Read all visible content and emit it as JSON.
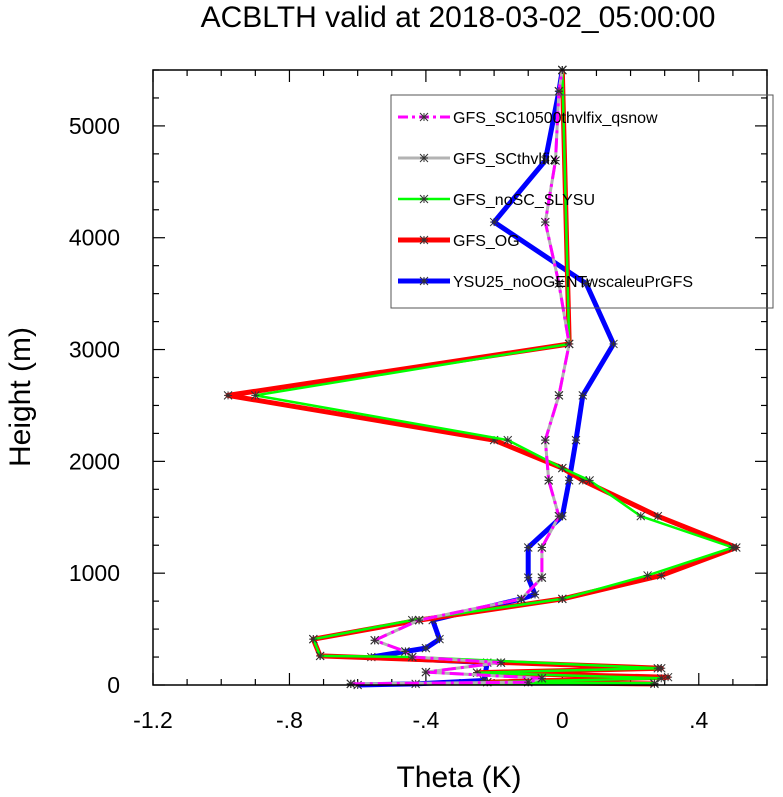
{
  "chart_data": {
    "type": "line",
    "title": "ACBLTH valid at 2018-03-02_05:00:00",
    "xlabel": "Theta (K)",
    "ylabel": "Height (m)",
    "xlim": [
      -1.2,
      0.6
    ],
    "ylim": [
      0,
      5500
    ],
    "x_ticks": [
      -1.2,
      -0.8,
      -0.4,
      0,
      0.4
    ],
    "x_tick_labels": [
      "-1.2",
      "-.8",
      "-.4",
      "0",
      ".4"
    ],
    "y_ticks": [
      0,
      1000,
      2000,
      3000,
      4000,
      5000
    ],
    "y_tick_labels": [
      "0",
      "1000",
      "2000",
      "3000",
      "4000",
      "5000"
    ],
    "grid": false,
    "legend_position": "top-right",
    "series": [
      {
        "name": "GFS_SC10500thvlfix_qsnow",
        "color": "#ff00ff",
        "style": "dashed",
        "points": [
          [
            -0.62,
            10
          ],
          [
            -0.1,
            25
          ],
          [
            -0.06,
            60
          ],
          [
            -0.4,
            115
          ],
          [
            -0.18,
            200
          ],
          [
            -0.44,
            250
          ],
          [
            -0.46,
            300
          ],
          [
            -0.55,
            400
          ],
          [
            -0.42,
            580
          ],
          [
            -0.12,
            770
          ],
          [
            -0.06,
            960
          ],
          [
            -0.06,
            1230
          ],
          [
            -0.01,
            1510
          ],
          [
            -0.04,
            1830
          ],
          [
            -0.05,
            2190
          ],
          [
            -0.01,
            2590
          ],
          [
            0.02,
            3050
          ],
          [
            -0.01,
            3590
          ],
          [
            -0.05,
            4140
          ],
          [
            -0.02,
            4690
          ],
          [
            -0.01,
            5310
          ],
          [
            0,
            5500
          ]
        ]
      },
      {
        "name": "GFS_SCthvlfix",
        "color": "#b3b3b3",
        "style": "solid",
        "points": [
          [
            -0.62,
            10
          ],
          [
            -0.1,
            25
          ],
          [
            -0.06,
            60
          ],
          [
            -0.4,
            115
          ],
          [
            -0.18,
            200
          ],
          [
            -0.44,
            250
          ],
          [
            -0.46,
            300
          ],
          [
            -0.55,
            400
          ],
          [
            -0.42,
            580
          ],
          [
            -0.12,
            770
          ],
          [
            -0.06,
            960
          ],
          [
            -0.06,
            1230
          ],
          [
            -0.01,
            1510
          ],
          [
            -0.04,
            1830
          ],
          [
            -0.05,
            2190
          ],
          [
            -0.01,
            2590
          ],
          [
            0.02,
            3050
          ],
          [
            -0.01,
            3590
          ],
          [
            -0.05,
            4140
          ],
          [
            -0.02,
            4690
          ],
          [
            -0.01,
            5310
          ],
          [
            0,
            5500
          ]
        ]
      },
      {
        "name": "GFS_noSC_SLYSU",
        "color": "#00ff00",
        "style": "solid",
        "points": [
          [
            -0.62,
            10
          ],
          [
            0.27,
            15
          ],
          [
            -0.22,
            25
          ],
          [
            0.29,
            60
          ],
          [
            -0.25,
            110
          ],
          [
            0.28,
            150
          ],
          [
            -0.44,
            250
          ],
          [
            -0.71,
            260
          ],
          [
            -0.73,
            410
          ],
          [
            -0.44,
            580
          ],
          [
            0.0,
            770
          ],
          [
            0.25,
            980
          ],
          [
            0.5,
            1230
          ],
          [
            0.23,
            1510
          ],
          [
            0.08,
            1830
          ],
          [
            0.0,
            1940
          ],
          [
            -0.16,
            2190
          ],
          [
            -0.9,
            2590
          ],
          [
            0.02,
            3050
          ],
          [
            0,
            5500
          ]
        ]
      },
      {
        "name": "GFS_OG",
        "color": "#ff0000",
        "style": "solid",
        "points": [
          [
            0.27,
            10
          ],
          [
            -0.22,
            25
          ],
          [
            0.31,
            70
          ],
          [
            -0.25,
            110
          ],
          [
            0.29,
            150
          ],
          [
            -0.71,
            260
          ],
          [
            -0.73,
            410
          ],
          [
            -0.42,
            580
          ],
          [
            0.0,
            770
          ],
          [
            0.29,
            980
          ],
          [
            0.51,
            1230
          ],
          [
            0.28,
            1510
          ],
          [
            0.06,
            1830
          ],
          [
            0.0,
            1940
          ],
          [
            -0.2,
            2190
          ],
          [
            -0.98,
            2590
          ],
          [
            0.02,
            3050
          ],
          [
            0,
            5500
          ]
        ]
      },
      {
        "name": "YSU25_noOGENTwscaleuPrGFS",
        "color": "#0000ff",
        "style": "solid",
        "points": [
          [
            -0.6,
            0
          ],
          [
            -0.43,
            10
          ],
          [
            -0.23,
            40
          ],
          [
            -0.22,
            200
          ],
          [
            -0.56,
            250
          ],
          [
            -0.4,
            330
          ],
          [
            -0.36,
            410
          ],
          [
            -0.38,
            580
          ],
          [
            -0.12,
            770
          ],
          [
            -0.08,
            810
          ],
          [
            -0.1,
            960
          ],
          [
            -0.1,
            1230
          ],
          [
            0.0,
            1510
          ],
          [
            0.02,
            1830
          ],
          [
            0.04,
            2190
          ],
          [
            0.06,
            2590
          ],
          [
            0.15,
            3050
          ],
          [
            0.07,
            3590
          ],
          [
            -0.2,
            4140
          ],
          [
            -0.05,
            4690
          ],
          [
            -0.01,
            5310
          ],
          [
            0,
            5500
          ]
        ]
      }
    ]
  }
}
